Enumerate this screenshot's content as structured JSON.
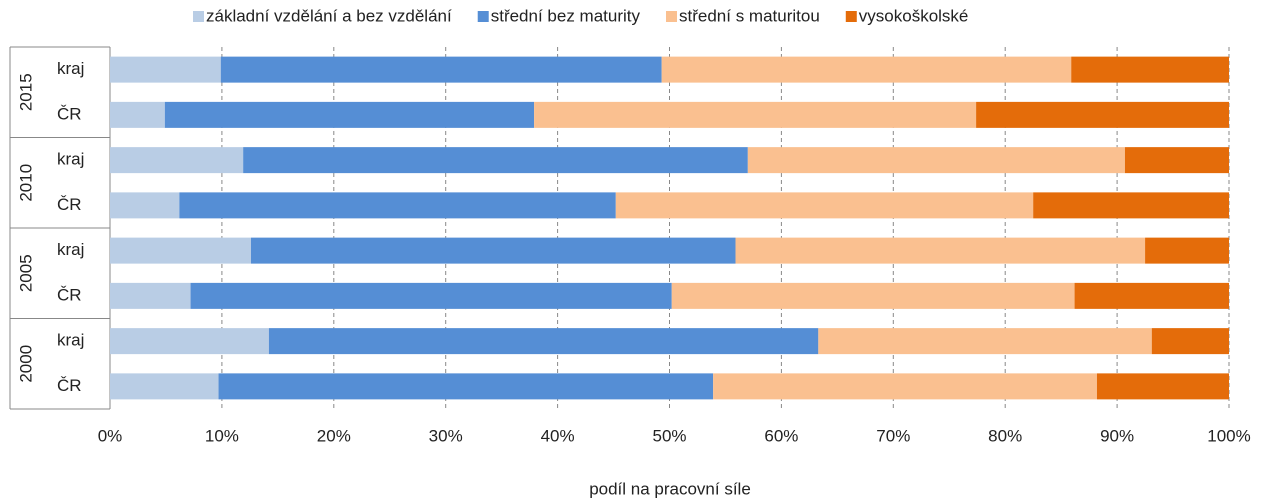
{
  "chart_data": {
    "type": "stacked-barh",
    "groups": [
      "2015",
      "2010",
      "2005",
      "2000"
    ],
    "categories": [
      "kraj",
      "ČR",
      "kraj",
      "ČR",
      "kraj",
      "ČR",
      "kraj",
      "ČR"
    ],
    "series": [
      {
        "name": "základní vzdělání a bez vzdělání",
        "color": "#b9cde5",
        "values": [
          9.9,
          4.9,
          11.9,
          6.2,
          12.6,
          7.2,
          14.2,
          9.7
        ]
      },
      {
        "name": "střední bez maturity",
        "color": "#558ed5",
        "values": [
          39.4,
          33.0,
          45.1,
          39.0,
          43.3,
          43.0,
          49.1,
          44.2
        ]
      },
      {
        "name": "střední s maturitou",
        "color": "#fac090",
        "values": [
          36.6,
          39.5,
          33.7,
          37.3,
          36.6,
          36.0,
          29.8,
          34.3
        ]
      },
      {
        "name": "vysokoškolské",
        "color": "#e46c0a",
        "values": [
          14.1,
          22.6,
          9.3,
          17.5,
          7.5,
          13.8,
          6.9,
          11.8
        ]
      }
    ],
    "xlim": [
      0,
      100
    ],
    "xticks": [
      {
        "value": 0,
        "label": "0%"
      },
      {
        "value": 10,
        "label": "10%"
      },
      {
        "value": 20,
        "label": "20%"
      },
      {
        "value": 30,
        "label": "30%"
      },
      {
        "value": 40,
        "label": "40%"
      },
      {
        "value": 50,
        "label": "50%"
      },
      {
        "value": 60,
        "label": "60%"
      },
      {
        "value": 70,
        "label": "70%"
      },
      {
        "value": 80,
        "label": "80%"
      },
      {
        "value": 90,
        "label": "90%"
      },
      {
        "value": 100,
        "label": "100%"
      }
    ],
    "xlabel": "podíl na pracovní síle",
    "grid": true,
    "legend": "top"
  }
}
